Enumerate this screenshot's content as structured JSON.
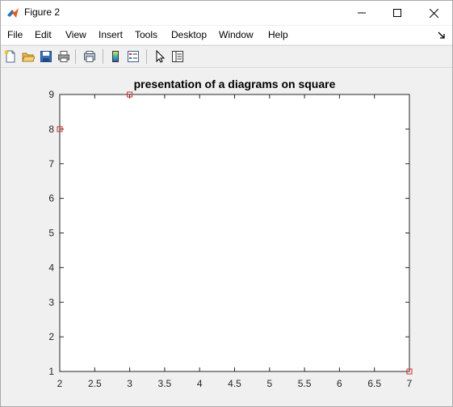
{
  "window": {
    "title": "Figure 2",
    "controls": [
      "minimize",
      "maximize",
      "close"
    ]
  },
  "menubar": {
    "items": [
      "File",
      "Edit",
      "View",
      "Insert",
      "Tools",
      "Desktop",
      "Window",
      "Help"
    ]
  },
  "toolbar": {
    "icons": [
      "new-figure-icon",
      "open-file-icon",
      "save-icon",
      "print-icon",
      "print-preview-icon",
      "colorbar-icon",
      "legend-icon",
      "pointer-arrow-icon",
      "property-inspector-icon"
    ]
  },
  "colors": {
    "marker": "#d62728",
    "axes_background": "#ffffff",
    "figure_background": "#f0f0f0"
  },
  "chart_data": {
    "type": "scatter",
    "title": "presentation of a diagrams on square",
    "xlabel": "",
    "ylabel": "",
    "xlim": [
      2,
      7
    ],
    "ylim": [
      1,
      9
    ],
    "xticks": [
      "2",
      "2.5",
      "3",
      "3.5",
      "4",
      "4.5",
      "5",
      "5.5",
      "6",
      "6.5",
      "7"
    ],
    "yticks": [
      "1",
      "2",
      "3",
      "4",
      "5",
      "6",
      "7",
      "8",
      "9"
    ],
    "grid": false,
    "marker": "square",
    "series": [
      {
        "points": [
          {
            "x": 2,
            "y": 8
          },
          {
            "x": 3,
            "y": 9
          },
          {
            "x": 7,
            "y": 1
          }
        ]
      }
    ]
  }
}
